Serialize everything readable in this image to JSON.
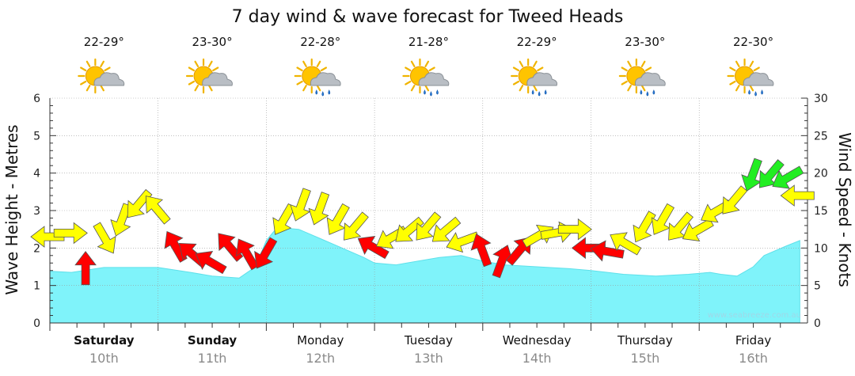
{
  "title": "7 day wind & wave forecast for Tweed Heads",
  "watermark": "www.seabreeze.com.au",
  "days": [
    {
      "day": "Saturday",
      "date": "10th",
      "temp": "22-29°",
      "icon": "sun-cloud-icon",
      "bold": true
    },
    {
      "day": "Sunday",
      "date": "11th",
      "temp": "23-30°",
      "icon": "sun-cloud-icon",
      "bold": true
    },
    {
      "day": "Monday",
      "date": "12th",
      "temp": "22-28°",
      "icon": "sun-cloud-rain-icon",
      "bold": false
    },
    {
      "day": "Tuesday",
      "date": "13th",
      "temp": "21-28°",
      "icon": "sun-cloud-rain-icon",
      "bold": false
    },
    {
      "day": "Wednesday",
      "date": "14th",
      "temp": "22-29°",
      "icon": "sun-cloud-rain-icon",
      "bold": false
    },
    {
      "day": "Thursday",
      "date": "15th",
      "temp": "23-30°",
      "icon": "sun-cloud-rain-icon",
      "bold": false
    },
    {
      "day": "Friday",
      "date": "16th",
      "temp": "22-30°",
      "icon": "sun-cloud-rain-icon",
      "bold": false
    }
  ],
  "colors": {
    "wave": "#7ff3fa",
    "wave_line": "#5ee0ea",
    "calm": "#ff0000",
    "moderate": "#ffff00",
    "strong": "#22ee22"
  },
  "chart_data": {
    "type": "area",
    "title": "7 day wind & wave forecast for Tweed Heads",
    "ylabel_left": "Wave Height - Metres",
    "ylabel_right": "Wind Speed - Knots",
    "ylim_left": [
      0,
      6
    ],
    "ylim_right": [
      0,
      30
    ],
    "yticks_left": [
      "0",
      "1",
      "2",
      "3",
      "4",
      "5",
      "6"
    ],
    "yticks_right": [
      "0",
      "5",
      "10",
      "15",
      "20",
      "25",
      "30"
    ],
    "x_unit": "days",
    "grid": true,
    "wave_height": {
      "x": [
        0,
        0.2,
        0.5,
        0.8,
        1.0,
        1.3,
        1.5,
        1.75,
        1.9,
        2.0,
        2.1,
        2.3,
        2.5,
        2.7,
        2.9,
        3.0,
        3.2,
        3.4,
        3.6,
        3.8,
        4.0,
        4.2,
        4.5,
        4.8,
        5.0,
        5.3,
        5.6,
        5.9,
        6.1,
        6.2,
        6.35,
        6.5,
        6.6,
        6.8,
        6.93
      ],
      "y": [
        1.38,
        1.35,
        1.48,
        1.48,
        1.48,
        1.35,
        1.25,
        1.2,
        1.5,
        2.2,
        2.55,
        2.5,
        2.25,
        2.0,
        1.75,
        1.6,
        1.55,
        1.65,
        1.75,
        1.8,
        1.65,
        1.55,
        1.5,
        1.45,
        1.4,
        1.3,
        1.25,
        1.3,
        1.35,
        1.3,
        1.25,
        1.5,
        1.8,
        2.05,
        2.2
      ]
    },
    "wind": {
      "x": [
        0,
        0.17,
        0.33,
        0.5,
        0.67,
        0.83,
        1,
        1.17,
        1.33,
        1.5,
        1.67,
        1.83,
        2,
        2.17,
        2.33,
        2.5,
        2.67,
        2.83,
        3,
        3.17,
        3.33,
        3.5,
        3.67,
        3.83,
        4,
        4.17,
        4.33,
        4.5,
        4.67,
        4.83,
        5,
        5.17,
        5.33,
        5.5,
        5.67,
        5.83,
        6,
        6.17,
        6.33,
        6.5,
        6.67,
        6.83,
        6.93
      ],
      "speed_kn": [
        11.5,
        12,
        7,
        11.5,
        14,
        16,
        15,
        10,
        9,
        8,
        10,
        9,
        9.5,
        14,
        16,
        15.5,
        14,
        13,
        10,
        11.5,
        12.5,
        13,
        12.5,
        11,
        9.5,
        8,
        9.5,
        11.5,
        12,
        12.5,
        10,
        9.5,
        10.5,
        13,
        14,
        13,
        12.5,
        15,
        16.5,
        20,
        20,
        19.5,
        17
      ],
      "direction_deg": [
        270,
        90,
        0,
        150,
        200,
        220,
        320,
        330,
        310,
        300,
        320,
        330,
        210,
        210,
        200,
        200,
        210,
        220,
        300,
        240,
        230,
        220,
        230,
        250,
        340,
        20,
        40,
        60,
        80,
        90,
        270,
        280,
        300,
        210,
        210,
        220,
        240,
        240,
        220,
        200,
        220,
        240,
        270
      ]
    }
  }
}
